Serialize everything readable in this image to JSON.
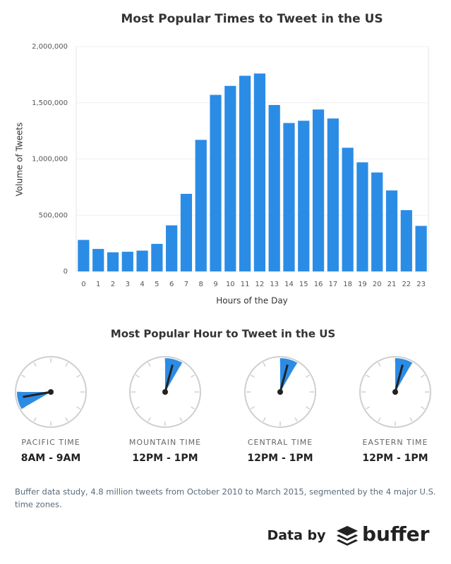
{
  "chart_data": {
    "type": "bar",
    "title": "Most Popular Times to Tweet in the US",
    "x_label": "Hours of the Day",
    "y_label": "Volume of Tweets",
    "categories": [
      "0",
      "1",
      "2",
      "3",
      "4",
      "5",
      "6",
      "7",
      "8",
      "9",
      "10",
      "11",
      "12",
      "13",
      "14",
      "15",
      "16",
      "17",
      "18",
      "19",
      "20",
      "21",
      "22",
      "23"
    ],
    "values": [
      280000,
      200000,
      170000,
      175000,
      185000,
      245000,
      410000,
      690000,
      1170000,
      1570000,
      1650000,
      1740000,
      1760000,
      1480000,
      1320000,
      1340000,
      1440000,
      1360000,
      1100000,
      970000,
      880000,
      720000,
      545000,
      405000
    ],
    "color": "#2b8ce6",
    "ylim": [
      0,
      2000000
    ],
    "yticks": [
      0,
      {
        "value": 500000,
        "label": "500,000"
      },
      {
        "value": 1000000,
        "label": "1,000,000"
      },
      {
        "value": 1500000,
        "label": "1,500,000"
      },
      {
        "value": 2000000,
        "label": "2,000,000"
      }
    ],
    "grid": true
  },
  "hour_section": {
    "title": "Most Popular Hour to Tweet in the US",
    "clocks": [
      {
        "zone": "PACIFIC TIME",
        "hours": "8AM - 9AM"
      },
      {
        "zone": "MOUNTAIN TIME",
        "hours": "12PM - 1PM"
      },
      {
        "zone": "CENTRAL TIME",
        "hours": "12PM - 1PM"
      },
      {
        "zone": "EASTERN TIME",
        "hours": "12PM - 1PM"
      }
    ]
  },
  "footnote": [
    "Buffer data study, 4.8 million tweets from October 2010 to March 2015, segmented by the 4 major U.S.",
    "time zones."
  ],
  "credit": {
    "prefix": "Data by",
    "brand": "buffer"
  }
}
